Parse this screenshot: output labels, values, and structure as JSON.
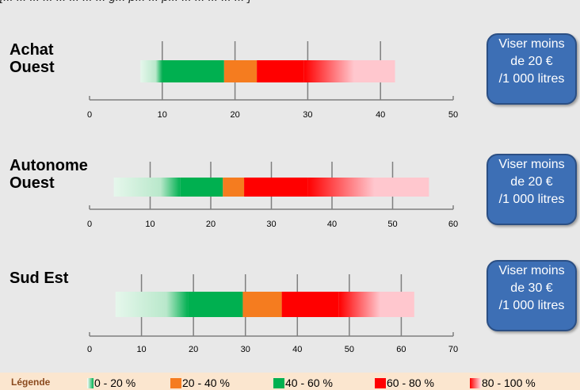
{
  "header": {
    "caption": "[... ... ... ... ... ... ... ... g... p... ... p... ... ... ... ... ... ]"
  },
  "colors": {
    "band_0_20": "#b9e8cb",
    "band_20_40": "#f57c1f",
    "band_40_60": "#00b050",
    "band_60_80": "#ff0000",
    "band_80_100": "#ffc7ce",
    "target_box": "#3d6fb5",
    "legend_bg": "#fbe6cf"
  },
  "chart_data": [
    {
      "type": "bar",
      "title": "Achat\nOuest",
      "xlim": [
        0,
        50
      ],
      "xticks": [
        "0",
        "10",
        "20",
        "30",
        "40",
        "50"
      ],
      "segments": [
        {
          "band": "0 - 20 %",
          "from": 7,
          "to": 10
        },
        {
          "band": "40 - 60 %",
          "from": 10,
          "to": 18.5
        },
        {
          "band": "20 - 40 %",
          "from": 18.5,
          "to": 23
        },
        {
          "band": "60 - 80 %",
          "from": 23,
          "to": 29.5
        },
        {
          "band": "80 - 100 %",
          "from": 29.5,
          "to": 42
        }
      ],
      "target": [
        "Viser moins",
        "de 20 €",
        "/1 000 litres"
      ]
    },
    {
      "type": "bar",
      "title": "Autonome\nOuest",
      "xlim": [
        0,
        60
      ],
      "xticks": [
        "0",
        "10",
        "20",
        "30",
        "40",
        "50",
        "60"
      ],
      "segments": [
        {
          "band": "0 - 20 %",
          "from": 4,
          "to": 15
        },
        {
          "band": "40 - 60 %",
          "from": 15,
          "to": 22
        },
        {
          "band": "20 - 40 %",
          "from": 22,
          "to": 25.5
        },
        {
          "band": "60 - 80 %",
          "from": 25.5,
          "to": 36
        },
        {
          "band": "80 - 100 %",
          "from": 36,
          "to": 56
        }
      ],
      "target": [
        "Viser moins",
        "de 20 €",
        "/1 000 litres"
      ]
    },
    {
      "type": "bar",
      "title": "Sud Est",
      "xlim": [
        0,
        70
      ],
      "xticks": [
        "0",
        "10",
        "20",
        "30",
        "40",
        "50",
        "60",
        "70"
      ],
      "segments": [
        {
          "band": "0 - 20 %",
          "from": 5,
          "to": 19
        },
        {
          "band": "40 - 60 %",
          "from": 19,
          "to": 29.5
        },
        {
          "band": "20 - 40 %",
          "from": 29.5,
          "to": 37
        },
        {
          "band": "60 - 80 %",
          "from": 37,
          "to": 48
        },
        {
          "band": "80 - 100 %",
          "from": 48,
          "to": 62.5
        }
      ],
      "target": [
        "Viser moins",
        "de 30 €",
        "/1 000 litres"
      ]
    }
  ],
  "legend": {
    "title": "Légende",
    "items": [
      {
        "label": "0 - 20 %",
        "band": "band_0_20"
      },
      {
        "label": "20 - 40 %",
        "band": "band_20_40"
      },
      {
        "label": "40 - 60 %",
        "band": "band_40_60"
      },
      {
        "label": "60 - 80 %",
        "band": "band_60_80"
      },
      {
        "label": "80 - 100 %",
        "band": "band_80_100"
      }
    ]
  }
}
